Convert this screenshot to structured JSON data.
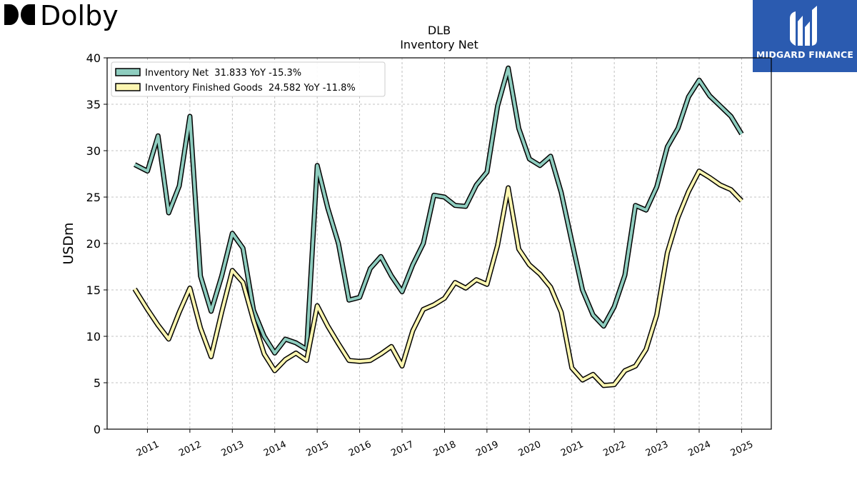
{
  "brand": {
    "left_logo": "Dolby",
    "right_logo": "MIDGARD FINANCE",
    "right_logo_bg": "#2b5bb0"
  },
  "chart_data": {
    "type": "line",
    "title": "DLB",
    "subtitle": "Inventory Net",
    "xlabel": "",
    "ylabel": "USDm",
    "ylim": [
      0,
      40
    ],
    "xlim": [
      2010.05,
      2025.7
    ],
    "yticks": [
      0,
      5,
      10,
      15,
      20,
      25,
      30,
      35,
      40
    ],
    "xticks": [
      "2011",
      "2012",
      "2013",
      "2014",
      "2015",
      "2016",
      "2017",
      "2018",
      "2019",
      "2020",
      "2021",
      "2022",
      "2023",
      "2024",
      "2025"
    ],
    "grid": true,
    "legend_position": "top-left",
    "series": [
      {
        "name": "Inventory Net  31.833 YoY -15.3%",
        "color": "#8ecdbf",
        "points": [
          [
            2010.7,
            28.5
          ],
          [
            2011.0,
            27.8
          ],
          [
            2011.25,
            31.6
          ],
          [
            2011.5,
            23.3
          ],
          [
            2011.75,
            26.2
          ],
          [
            2012.0,
            33.7
          ],
          [
            2012.25,
            16.5
          ],
          [
            2012.5,
            12.7
          ],
          [
            2012.75,
            16.5
          ],
          [
            2013.0,
            21.1
          ],
          [
            2013.25,
            19.5
          ],
          [
            2013.5,
            12.8
          ],
          [
            2013.75,
            10.0
          ],
          [
            2014.0,
            8.2
          ],
          [
            2014.25,
            9.7
          ],
          [
            2014.5,
            9.3
          ],
          [
            2014.75,
            8.6
          ],
          [
            2015.0,
            28.4
          ],
          [
            2015.25,
            23.8
          ],
          [
            2015.5,
            20.0
          ],
          [
            2015.75,
            13.9
          ],
          [
            2016.0,
            14.2
          ],
          [
            2016.25,
            17.3
          ],
          [
            2016.5,
            18.6
          ],
          [
            2016.75,
            16.5
          ],
          [
            2017.0,
            14.8
          ],
          [
            2017.25,
            17.7
          ],
          [
            2017.5,
            20.0
          ],
          [
            2017.75,
            25.2
          ],
          [
            2018.0,
            25.0
          ],
          [
            2018.25,
            24.1
          ],
          [
            2018.5,
            24.0
          ],
          [
            2018.75,
            26.3
          ],
          [
            2019.0,
            27.7
          ],
          [
            2019.25,
            34.8
          ],
          [
            2019.5,
            38.9
          ],
          [
            2019.75,
            32.4
          ],
          [
            2020.0,
            29.1
          ],
          [
            2020.25,
            28.4
          ],
          [
            2020.5,
            29.4
          ],
          [
            2020.75,
            25.5
          ],
          [
            2021.0,
            20.2
          ],
          [
            2021.25,
            15.0
          ],
          [
            2021.5,
            12.3
          ],
          [
            2021.75,
            11.1
          ],
          [
            2022.0,
            13.2
          ],
          [
            2022.25,
            16.6
          ],
          [
            2022.5,
            24.1
          ],
          [
            2022.75,
            23.6
          ],
          [
            2023.0,
            26.1
          ],
          [
            2023.25,
            30.4
          ],
          [
            2023.5,
            32.4
          ],
          [
            2023.75,
            35.8
          ],
          [
            2024.0,
            37.6
          ],
          [
            2024.25,
            35.9
          ],
          [
            2024.5,
            34.8
          ],
          [
            2024.75,
            33.7
          ],
          [
            2025.0,
            31.8
          ]
        ]
      },
      {
        "name": "Inventory Finished Goods  24.582 YoY -11.8%",
        "color": "#fcf6b1",
        "points": [
          [
            2010.7,
            15.1
          ],
          [
            2011.0,
            12.9
          ],
          [
            2011.25,
            11.2
          ],
          [
            2011.5,
            9.7
          ],
          [
            2011.75,
            12.6
          ],
          [
            2012.0,
            15.2
          ],
          [
            2012.25,
            10.9
          ],
          [
            2012.5,
            7.8
          ],
          [
            2012.75,
            12.6
          ],
          [
            2013.0,
            17.1
          ],
          [
            2013.25,
            15.8
          ],
          [
            2013.5,
            11.7
          ],
          [
            2013.75,
            8.1
          ],
          [
            2014.0,
            6.3
          ],
          [
            2014.25,
            7.5
          ],
          [
            2014.5,
            8.2
          ],
          [
            2014.75,
            7.4
          ],
          [
            2015.0,
            13.3
          ],
          [
            2015.25,
            11.1
          ],
          [
            2015.5,
            9.2
          ],
          [
            2015.75,
            7.4
          ],
          [
            2016.0,
            7.3
          ],
          [
            2016.25,
            7.4
          ],
          [
            2016.5,
            8.1
          ],
          [
            2016.75,
            8.9
          ],
          [
            2017.0,
            6.8
          ],
          [
            2017.25,
            10.6
          ],
          [
            2017.5,
            12.9
          ],
          [
            2017.75,
            13.4
          ],
          [
            2018.0,
            14.1
          ],
          [
            2018.25,
            15.8
          ],
          [
            2018.5,
            15.2
          ],
          [
            2018.75,
            16.1
          ],
          [
            2019.0,
            15.6
          ],
          [
            2019.25,
            19.8
          ],
          [
            2019.5,
            26.0
          ],
          [
            2019.75,
            19.4
          ],
          [
            2020.0,
            17.7
          ],
          [
            2020.25,
            16.7
          ],
          [
            2020.5,
            15.3
          ],
          [
            2020.75,
            12.6
          ],
          [
            2021.0,
            6.6
          ],
          [
            2021.25,
            5.3
          ],
          [
            2021.5,
            5.9
          ],
          [
            2021.75,
            4.7
          ],
          [
            2022.0,
            4.8
          ],
          [
            2022.25,
            6.3
          ],
          [
            2022.5,
            6.8
          ],
          [
            2022.75,
            8.6
          ],
          [
            2023.0,
            12.3
          ],
          [
            2023.25,
            19.0
          ],
          [
            2023.5,
            22.8
          ],
          [
            2023.75,
            25.6
          ],
          [
            2024.0,
            27.8
          ],
          [
            2024.25,
            27.1
          ],
          [
            2024.5,
            26.3
          ],
          [
            2024.75,
            25.8
          ],
          [
            2025.0,
            24.6
          ]
        ]
      }
    ]
  }
}
